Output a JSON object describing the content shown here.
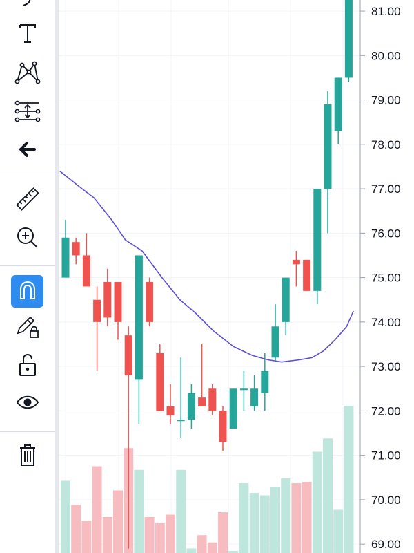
{
  "toolbar": {
    "tools": [
      {
        "name": "brush-tool",
        "icon": "brush-icon",
        "active": false
      },
      {
        "name": "text-tool",
        "icon": "text-icon",
        "active": false
      },
      {
        "name": "pattern-tool",
        "icon": "pattern-icon",
        "active": false
      },
      {
        "name": "prediction-tool",
        "icon": "prediction-icon",
        "active": false
      },
      {
        "name": "back-tool",
        "icon": "arrow-left-icon",
        "active": false
      },
      {
        "name": "measure-tool",
        "icon": "ruler-icon",
        "active": false
      },
      {
        "name": "zoom-tool",
        "icon": "zoom-in-icon",
        "active": false
      },
      {
        "name": "magnet-tool",
        "icon": "magnet-icon",
        "active": true
      },
      {
        "name": "lock-drawings-tool",
        "icon": "pencil-lock-icon",
        "active": false
      },
      {
        "name": "lock-all-tool",
        "icon": "unlock-icon",
        "active": false
      },
      {
        "name": "visibility-tool",
        "icon": "eye-icon",
        "active": false
      },
      {
        "name": "delete-tool",
        "icon": "trash-icon",
        "active": false
      }
    ],
    "active_color": "#2e8cf0"
  },
  "chart_data": {
    "type": "candlestick",
    "ylim": [
      68.8,
      81.25
    ],
    "y_ticks": [
      69,
      70,
      71,
      72,
      73,
      74,
      75,
      76,
      77,
      78,
      79,
      80,
      81
    ],
    "y_tick_labels": [
      "69.00",
      "70.00",
      "71.00",
      "72.00",
      "73.00",
      "74.00",
      "75.00",
      "76.00",
      "77.00",
      "78.00",
      "79.00",
      "80.00",
      "81.00"
    ],
    "colors": {
      "up": "#26a69a",
      "down": "#ef5350",
      "ma": "#5b4fd6",
      "vol_up": "#bfe6dc",
      "vol_down": "#f7bcc0"
    },
    "candles": [
      {
        "o": 75.0,
        "h": 76.3,
        "l": 75.0,
        "c": 75.9
      },
      {
        "o": 75.8,
        "h": 75.9,
        "l": 75.3,
        "c": 75.5
      },
      {
        "o": 75.5,
        "h": 76.0,
        "l": 74.8,
        "c": 74.8
      },
      {
        "o": 74.5,
        "h": 74.8,
        "l": 72.9,
        "c": 74.0
      },
      {
        "o": 74.9,
        "h": 75.2,
        "l": 73.9,
        "c": 74.1
      },
      {
        "o": 74.9,
        "h": 74.9,
        "l": 73.6,
        "c": 74.0
      },
      {
        "o": 73.7,
        "h": 73.9,
        "l": 68.9,
        "c": 72.8
      },
      {
        "o": 72.7,
        "h": 75.5,
        "l": 71.7,
        "c": 75.5
      },
      {
        "o": 74.9,
        "h": 75.0,
        "l": 73.9,
        "c": 74.0
      },
      {
        "o": 73.3,
        "h": 73.5,
        "l": 72.0,
        "c": 72.0
      },
      {
        "o": 72.1,
        "h": 72.6,
        "l": 71.7,
        "c": 71.9
      },
      {
        "o": 71.8,
        "h": 73.2,
        "l": 71.4,
        "c": 71.8
      },
      {
        "o": 71.8,
        "h": 72.6,
        "l": 71.6,
        "c": 72.4
      },
      {
        "o": 72.3,
        "h": 73.5,
        "l": 72.1,
        "c": 72.1
      },
      {
        "o": 72.5,
        "h": 72.6,
        "l": 71.9,
        "c": 72.0
      },
      {
        "o": 72.0,
        "h": 72.1,
        "l": 71.1,
        "c": 71.3
      },
      {
        "o": 71.6,
        "h": 72.5,
        "l": 71.6,
        "c": 72.5
      },
      {
        "o": 72.5,
        "h": 72.9,
        "l": 72.0,
        "c": 72.5
      },
      {
        "o": 72.1,
        "h": 72.8,
        "l": 72.0,
        "c": 72.5
      },
      {
        "o": 72.4,
        "h": 73.3,
        "l": 72.0,
        "c": 72.9
      },
      {
        "o": 73.2,
        "h": 74.4,
        "l": 73.1,
        "c": 73.9
      },
      {
        "o": 74.0,
        "h": 75.0,
        "l": 73.7,
        "c": 75.0
      },
      {
        "o": 75.4,
        "h": 75.6,
        "l": 74.8,
        "c": 75.3
      },
      {
        "o": 75.4,
        "h": 75.4,
        "l": 74.7,
        "c": 74.7
      },
      {
        "o": 74.7,
        "h": 77.0,
        "l": 74.4,
        "c": 77.0
      },
      {
        "o": 77.0,
        "h": 79.2,
        "l": 76.0,
        "c": 78.9
      },
      {
        "o": 78.3,
        "h": 79.5,
        "l": 78.0,
        "c": 79.5
      },
      {
        "o": 79.5,
        "h": 81.3,
        "l": 79.4,
        "c": 81.3
      }
    ],
    "volume": [
      58,
      38,
      25,
      70,
      28,
      50,
      85,
      67,
      28,
      23,
      30,
      67,
      2,
      13,
      7,
      32,
      0,
      56,
      48,
      46,
      53,
      60,
      56,
      57,
      82,
      93,
      34,
      120
    ],
    "moving_average": [
      [
        -0.55,
        77.4
      ],
      [
        1.3,
        77.05
      ],
      [
        2.7,
        76.8
      ],
      [
        4.4,
        76.3
      ],
      [
        5.7,
        75.85
      ],
      [
        7.3,
        75.6
      ],
      [
        9.2,
        75.0
      ],
      [
        10.9,
        74.5
      ],
      [
        12.4,
        74.2
      ],
      [
        14.1,
        73.8
      ],
      [
        16.0,
        73.45
      ],
      [
        17.8,
        73.25
      ],
      [
        19.3,
        73.15
      ],
      [
        20.6,
        73.1
      ],
      [
        22.3,
        73.15
      ],
      [
        23.5,
        73.2
      ],
      [
        24.6,
        73.35
      ],
      [
        25.7,
        73.6
      ],
      [
        26.8,
        73.9
      ],
      [
        27.45,
        74.25
      ]
    ]
  }
}
